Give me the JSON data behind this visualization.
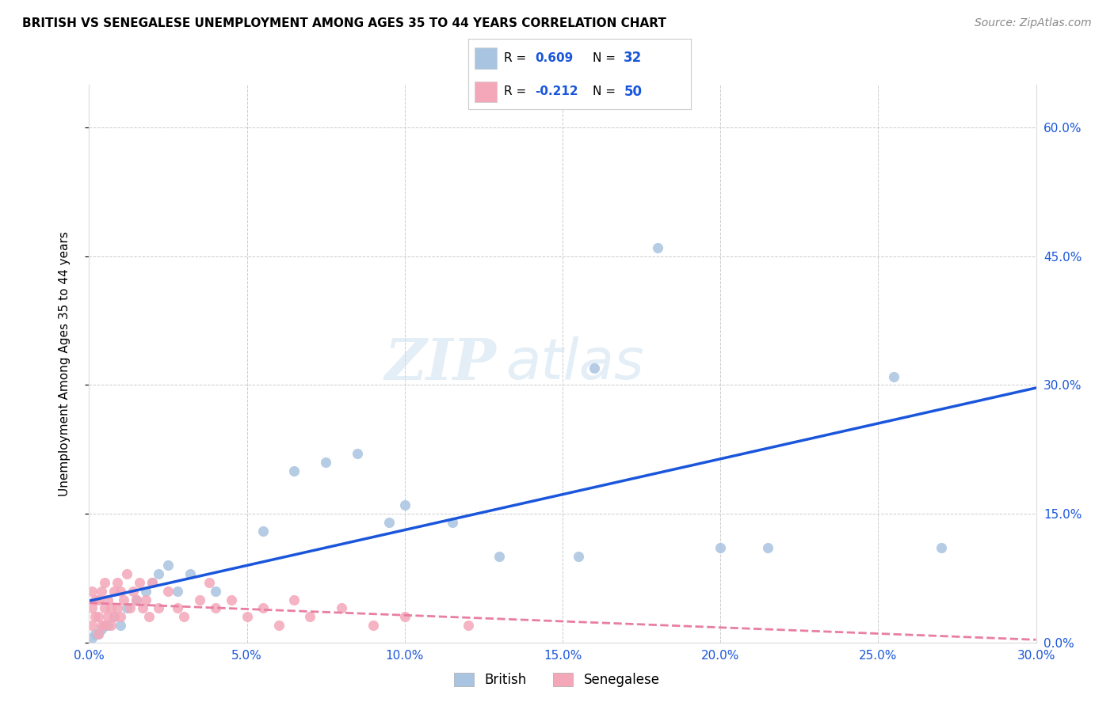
{
  "title": "BRITISH VS SENEGALESE UNEMPLOYMENT AMONG AGES 35 TO 44 YEARS CORRELATION CHART",
  "source": "Source: ZipAtlas.com",
  "ylabel": "Unemployment Among Ages 35 to 44 years",
  "xlim": [
    0.0,
    0.3
  ],
  "ylim": [
    0.0,
    0.65
  ],
  "xticks": [
    0.0,
    0.05,
    0.1,
    0.15,
    0.2,
    0.25,
    0.3
  ],
  "yticks": [
    0.0,
    0.15,
    0.3,
    0.45,
    0.6
  ],
  "xtick_labels": [
    "0.0%",
    "5.0%",
    "10.0%",
    "15.0%",
    "20.0%",
    "25.0%",
    "30.0%"
  ],
  "ytick_labels": [
    "0.0%",
    "15.0%",
    "30.0%",
    "45.0%",
    "60.0%"
  ],
  "british_color": "#a8c4e0",
  "senegalese_color": "#f4a7b9",
  "british_line_color": "#1a56db",
  "senegalese_line_color": "#e87ea1",
  "british_x": [
    0.001,
    0.002,
    0.003,
    0.004,
    0.005,
    0.006,
    0.008,
    0.01,
    0.012,
    0.015,
    0.018,
    0.02,
    0.022,
    0.025,
    0.028,
    0.032,
    0.04,
    0.055,
    0.065,
    0.075,
    0.085,
    0.095,
    0.1,
    0.115,
    0.13,
    0.155,
    0.16,
    0.18,
    0.2,
    0.215,
    0.255,
    0.27
  ],
  "british_y": [
    0.005,
    0.01,
    0.01,
    0.015,
    0.02,
    0.02,
    0.03,
    0.02,
    0.04,
    0.05,
    0.06,
    0.07,
    0.08,
    0.09,
    0.06,
    0.08,
    0.06,
    0.13,
    0.2,
    0.21,
    0.22,
    0.14,
    0.16,
    0.14,
    0.1,
    0.1,
    0.32,
    0.46,
    0.11,
    0.11,
    0.31,
    0.11
  ],
  "senegalese_x": [
    0.001,
    0.001,
    0.001,
    0.002,
    0.002,
    0.003,
    0.003,
    0.003,
    0.004,
    0.004,
    0.005,
    0.005,
    0.005,
    0.006,
    0.006,
    0.007,
    0.007,
    0.008,
    0.008,
    0.009,
    0.009,
    0.01,
    0.01,
    0.011,
    0.012,
    0.013,
    0.014,
    0.015,
    0.016,
    0.017,
    0.018,
    0.019,
    0.02,
    0.022,
    0.025,
    0.028,
    0.03,
    0.035,
    0.038,
    0.04,
    0.045,
    0.05,
    0.055,
    0.06,
    0.065,
    0.07,
    0.08,
    0.09,
    0.1,
    0.12
  ],
  "senegalese_y": [
    0.02,
    0.04,
    0.06,
    0.03,
    0.05,
    0.01,
    0.03,
    0.05,
    0.02,
    0.06,
    0.02,
    0.04,
    0.07,
    0.03,
    0.05,
    0.02,
    0.04,
    0.03,
    0.06,
    0.04,
    0.07,
    0.03,
    0.06,
    0.05,
    0.08,
    0.04,
    0.06,
    0.05,
    0.07,
    0.04,
    0.05,
    0.03,
    0.07,
    0.04,
    0.06,
    0.04,
    0.03,
    0.05,
    0.07,
    0.04,
    0.05,
    0.03,
    0.04,
    0.02,
    0.05,
    0.03,
    0.04,
    0.02,
    0.03,
    0.02
  ],
  "watermark_zip": "ZIP",
  "watermark_atlas": "atlas",
  "background_color": "#ffffff",
  "grid_color": "#cccccc",
  "legend_british_label": "British",
  "legend_senegalese_label": "Senegalese"
}
